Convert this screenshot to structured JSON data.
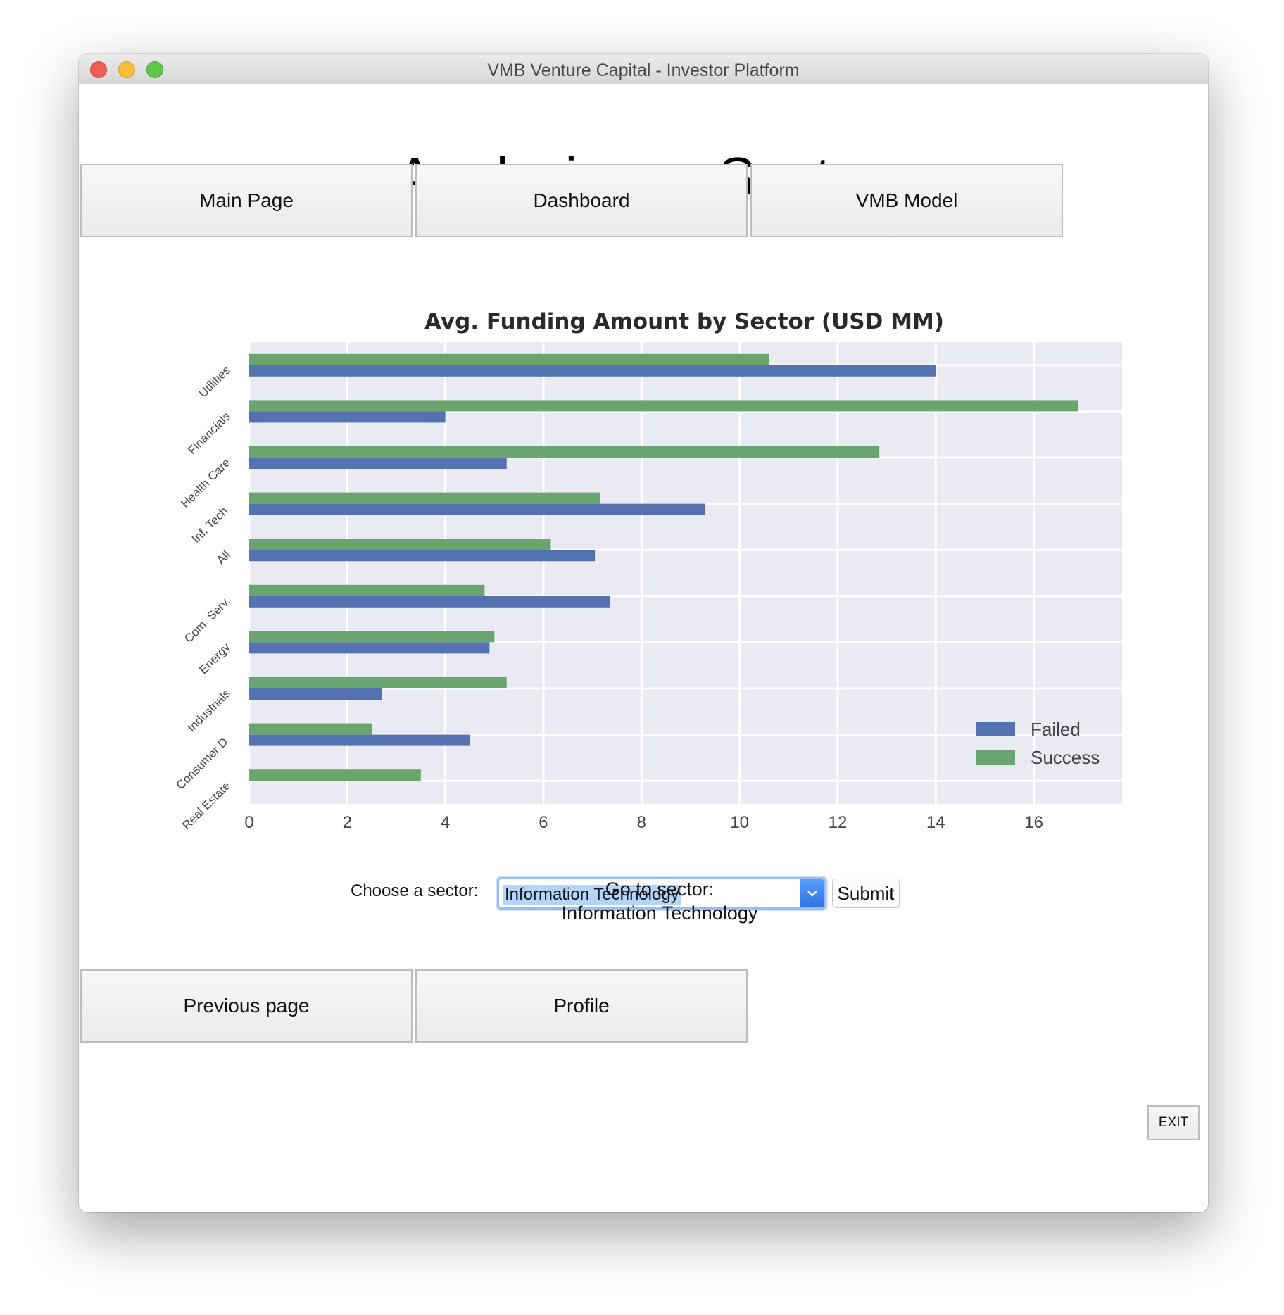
{
  "window": {
    "title": "VMB Venture Capital - Investor Platform"
  },
  "page": {
    "title": "Analysis per Sector"
  },
  "nav": {
    "main_page": "Main Page",
    "dashboard": "Dashboard",
    "vmb_model": "VMB Model"
  },
  "chooser": {
    "label": "Choose a sector:",
    "selected": "Information Technology",
    "submit": "Submit",
    "goto_label": "Go to sector:",
    "goto_value": "Information Technology"
  },
  "bottom": {
    "previous": "Previous page",
    "profile": "Profile",
    "exit": "EXIT"
  },
  "colors": {
    "failed": "#5572b0",
    "success": "#6aa56f",
    "plot_bg": "#eaeaf2"
  },
  "icons": {
    "select_arrow": "chevron-down-icon"
  },
  "chart_data": {
    "type": "bar",
    "orientation": "horizontal",
    "title": "Avg. Funding Amount by Sector (USD MM)",
    "categories": [
      "Utilities",
      "Financials",
      "Health Care",
      "Inf. Tech.",
      "All",
      "Com. Serv.",
      "Energy",
      "Industrials",
      "Consumer D.",
      "Real Estate"
    ],
    "series": [
      {
        "name": "Failed",
        "values": [
          14.0,
          4.0,
          5.25,
          9.3,
          7.05,
          7.35,
          4.9,
          2.7,
          4.5,
          0
        ]
      },
      {
        "name": "Success",
        "values": [
          10.6,
          16.9,
          12.85,
          7.15,
          6.15,
          4.8,
          5.0,
          5.25,
          2.5,
          3.5
        ]
      }
    ],
    "xticks": [
      "0",
      "2",
      "4",
      "6",
      "8",
      "10",
      "12",
      "14",
      "16"
    ],
    "xlim": [
      0,
      17.8
    ],
    "grid": true,
    "legend_position": "bottom-right"
  }
}
